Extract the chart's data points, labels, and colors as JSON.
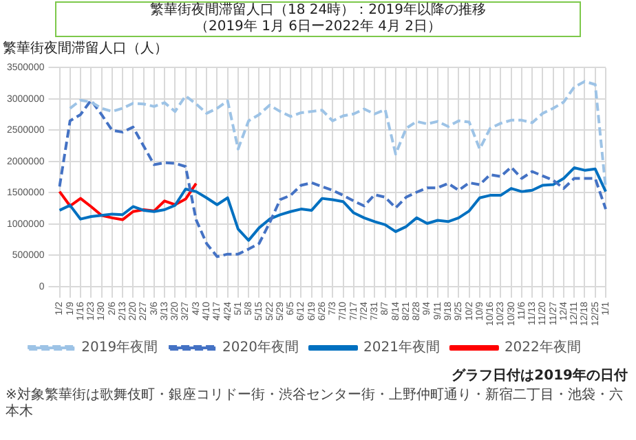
{
  "chart_data": {
    "type": "line",
    "title": "繁華街夜間滞留人口（18 24時）：2019年以降の推移",
    "subtitle": "（2019年 1月 6日ー2022年 4月 2日）",
    "ylabel": "繁華街夜間滞留人口（人）",
    "categories": [
      "1/2",
      "1/9",
      "1/16",
      "1/23",
      "1/30",
      "2/6",
      "2/13",
      "2/20",
      "2/27",
      "3/6",
      "3/13",
      "3/20",
      "3/27",
      "4/3",
      "4/10",
      "4/17",
      "4/24",
      "5/1",
      "5/8",
      "5/15",
      "5/22",
      "5/29",
      "6/5",
      "6/12",
      "6/19",
      "6/26",
      "7/3",
      "7/10",
      "7/17",
      "7/24",
      "7/31",
      "8/7",
      "8/14",
      "8/21",
      "8/28",
      "9/4",
      "9/11",
      "9/18",
      "9/25",
      "10/2",
      "10/9",
      "10/16",
      "10/23",
      "10/30",
      "11/6",
      "11/13",
      "11/20",
      "11/27",
      "12/4",
      "12/11",
      "12/18",
      "12/25",
      "1/1"
    ],
    "series": [
      {
        "name": "2019年夜間",
        "color": "#9dc3e6",
        "line_style": "dashed",
        "values": [
          null,
          2850000,
          2980000,
          2950000,
          2850000,
          2800000,
          2850000,
          2930000,
          2920000,
          2880000,
          2940000,
          2800000,
          3050000,
          2920000,
          2770000,
          2850000,
          2970000,
          2200000,
          2650000,
          2750000,
          2900000,
          2800000,
          2720000,
          2780000,
          2800000,
          2820000,
          2650000,
          2730000,
          2760000,
          2840000,
          2760000,
          2830000,
          2120000,
          2530000,
          2640000,
          2600000,
          2640000,
          2560000,
          2650000,
          2630000,
          2200000,
          2530000,
          2610000,
          2660000,
          2660000,
          2620000,
          2770000,
          2850000,
          2950000,
          3190000,
          3280000,
          3230000,
          1570000
        ]
      },
      {
        "name": "2020年夜間",
        "color": "#4472c4",
        "line_style": "dashed",
        "values": [
          1600000,
          2650000,
          2750000,
          2980000,
          2750000,
          2500000,
          2470000,
          2550000,
          2250000,
          1950000,
          1980000,
          1970000,
          1920000,
          1070000,
          690000,
          480000,
          520000,
          520000,
          600000,
          690000,
          1020000,
          1390000,
          1460000,
          1620000,
          1660000,
          1600000,
          1540000,
          1460000,
          1370000,
          1290000,
          1470000,
          1430000,
          1260000,
          1430000,
          1510000,
          1580000,
          1580000,
          1650000,
          1540000,
          1660000,
          1630000,
          1790000,
          1760000,
          1910000,
          1730000,
          1840000,
          1770000,
          1700000,
          1570000,
          1730000,
          1730000,
          1730000,
          1240000
        ]
      },
      {
        "name": "2021年夜間",
        "color": "#0070c0",
        "line_style": "solid",
        "values": [
          1220000,
          1300000,
          1080000,
          1120000,
          1140000,
          1160000,
          1150000,
          1280000,
          1220000,
          1200000,
          1230000,
          1300000,
          1560000,
          1520000,
          1420000,
          1310000,
          1420000,
          920000,
          740000,
          940000,
          1080000,
          1150000,
          1200000,
          1240000,
          1220000,
          1410000,
          1390000,
          1360000,
          1180000,
          1100000,
          1040000,
          990000,
          880000,
          960000,
          1100000,
          1010000,
          1060000,
          1040000,
          1100000,
          1210000,
          1420000,
          1460000,
          1460000,
          1570000,
          1520000,
          1540000,
          1620000,
          1630000,
          1730000,
          1900000,
          1860000,
          1880000,
          1520000
        ]
      },
      {
        "name": "2022年夜間",
        "color": "#ff0000",
        "line_style": "solid",
        "values": [
          1520000,
          1290000,
          1410000,
          1280000,
          1140000,
          1100000,
          1070000,
          1200000,
          1230000,
          1210000,
          1370000,
          1310000,
          1400000,
          1650000,
          null,
          null,
          null,
          null,
          null,
          null,
          null,
          null,
          null,
          null,
          null,
          null,
          null,
          null,
          null,
          null,
          null,
          null,
          null,
          null,
          null,
          null,
          null,
          null,
          null,
          null,
          null,
          null,
          null,
          null,
          null,
          null,
          null,
          null,
          null,
          null,
          null,
          null,
          null
        ]
      }
    ],
    "ylim": [
      0,
      3500000
    ],
    "yticks": [
      0,
      500000,
      1000000,
      1500000,
      2000000,
      2500000,
      3000000,
      3500000
    ],
    "grid": true,
    "legend": "bottom",
    "annotations": [
      "グラフ日付は2019年の日付",
      "※対象繁華街は歌舞伎町・銀座コリドー街・渋谷センター街・上野仲町通り・新宿二丁目・池袋・六本木"
    ]
  }
}
